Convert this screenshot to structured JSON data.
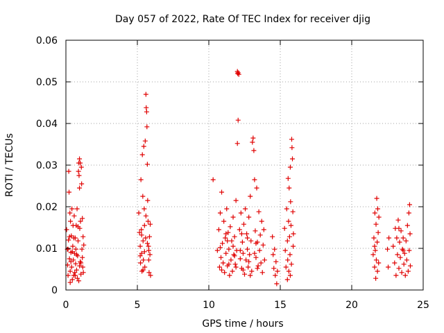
{
  "chart_data": {
    "type": "scatter",
    "title": "Day 057 of 2022, Rate Of TEC Index for receiver djig",
    "xlabel": "GPS time / hours",
    "ylabel": "ROTI / TECUs",
    "xlim": [
      0,
      25
    ],
    "ylim": [
      0,
      0.06
    ],
    "xticks": [
      0,
      5,
      10,
      15,
      20,
      25
    ],
    "xtick_labels": [
      "0",
      "5",
      "10",
      "15",
      "20",
      "25"
    ],
    "yticks": [
      0,
      0.01,
      0.02,
      0.03,
      0.04,
      0.05,
      0.06
    ],
    "ytick_labels": [
      "0",
      "0.01",
      "0.02",
      "0.03",
      "0.04",
      "0.05",
      "0.06"
    ],
    "grid": true,
    "marker": "+",
    "color": "#e00000",
    "series": [
      {
        "name": "ROTI",
        "points": [
          [
            0.05,
            0.0145
          ],
          [
            0.1,
            0.0098
          ],
          [
            0.12,
            0.006
          ],
          [
            0.15,
            0.0035
          ],
          [
            0.18,
            0.012
          ],
          [
            0.2,
            0.0285
          ],
          [
            0.22,
            0.0235
          ],
          [
            0.25,
            0.0075
          ],
          [
            0.28,
            0.0185
          ],
          [
            0.3,
            0.0045
          ],
          [
            0.32,
            0.0165
          ],
          [
            0.35,
            0.009
          ],
          [
            0.38,
            0.013
          ],
          [
            0.4,
            0.0055
          ],
          [
            0.42,
            0.0195
          ],
          [
            0.45,
            0.0025
          ],
          [
            0.48,
            0.0105
          ],
          [
            0.5,
            0.0155
          ],
          [
            0.52,
            0.0072
          ],
          [
            0.55,
            0.0035
          ],
          [
            0.58,
            0.0178
          ],
          [
            0.6,
            0.0088
          ],
          [
            0.62,
            0.0042
          ],
          [
            0.65,
            0.0125
          ],
          [
            0.68,
            0.0063
          ],
          [
            0.7,
            0.0098
          ],
          [
            0.72,
            0.0155
          ],
          [
            0.75,
            0.0048
          ],
          [
            0.78,
            0.0195
          ],
          [
            0.8,
            0.0028
          ],
          [
            0.82,
            0.0082
          ],
          [
            0.85,
            0.0118
          ],
          [
            0.88,
            0.0285
          ],
          [
            0.9,
            0.0305
          ],
          [
            0.92,
            0.0275
          ],
          [
            0.95,
            0.0245
          ],
          [
            0.97,
            0.0148
          ],
          [
            1.0,
            0.0068
          ],
          [
            1.02,
            0.0165
          ],
          [
            1.05,
            0.0038
          ],
          [
            1.08,
            0.0295
          ],
          [
            1.1,
            0.0255
          ],
          [
            1.12,
            0.0098
          ],
          [
            1.15,
            0.0172
          ],
          [
            1.18,
            0.0055
          ],
          [
            1.2,
            0.0128
          ],
          [
            1.22,
            0.0042
          ],
          [
            1.25,
            0.0108
          ],
          [
            0.15,
            0.0098
          ],
          [
            0.35,
            0.0068
          ],
          [
            0.55,
            0.0125
          ],
          [
            0.75,
            0.0085
          ],
          [
            0.95,
            0.0058
          ],
          [
            1.15,
            0.0078
          ],
          [
            0.25,
            0.0128
          ],
          [
            0.45,
            0.0092
          ],
          [
            0.65,
            0.0035
          ],
          [
            0.85,
            0.0152
          ],
          [
            1.05,
            0.0065
          ],
          [
            0.3,
            0.0018
          ],
          [
            0.9,
            0.0022
          ],
          [
            1.0,
            0.0305
          ],
          [
            0.95,
            0.0315
          ],
          [
            5.1,
            0.0185
          ],
          [
            5.15,
            0.0138
          ],
          [
            5.2,
            0.0105
          ],
          [
            5.22,
            0.0065
          ],
          [
            5.25,
            0.0265
          ],
          [
            5.28,
            0.0145
          ],
          [
            5.3,
            0.0088
          ],
          [
            5.32,
            0.0045
          ],
          [
            5.35,
            0.0325
          ],
          [
            5.38,
            0.0225
          ],
          [
            5.4,
            0.0118
          ],
          [
            5.42,
            0.0072
          ],
          [
            5.45,
            0.0345
          ],
          [
            5.48,
            0.0195
          ],
          [
            5.5,
            0.0092
          ],
          [
            5.52,
            0.0055
          ],
          [
            5.55,
            0.0358
          ],
          [
            5.58,
            0.0125
          ],
          [
            5.6,
            0.047
          ],
          [
            5.62,
            0.0438
          ],
          [
            5.65,
            0.0428
          ],
          [
            5.67,
            0.0392
          ],
          [
            5.7,
            0.0302
          ],
          [
            5.72,
            0.0215
          ],
          [
            5.75,
            0.0165
          ],
          [
            5.78,
            0.0105
          ],
          [
            5.8,
            0.0072
          ],
          [
            5.82,
            0.0042
          ],
          [
            5.85,
            0.0128
          ],
          [
            5.88,
            0.0085
          ],
          [
            5.9,
            0.0158
          ],
          [
            5.92,
            0.0035
          ],
          [
            5.3,
            0.0132
          ],
          [
            5.5,
            0.0155
          ],
          [
            5.7,
            0.0112
          ],
          [
            5.2,
            0.0082
          ],
          [
            5.4,
            0.0048
          ],
          [
            5.6,
            0.0178
          ],
          [
            5.8,
            0.0095
          ],
          [
            10.3,
            0.0265
          ],
          [
            10.6,
            0.0095
          ],
          [
            10.7,
            0.0145
          ],
          [
            10.75,
            0.0055
          ],
          [
            10.8,
            0.0185
          ],
          [
            10.85,
            0.0078
          ],
          [
            10.9,
            0.0235
          ],
          [
            10.95,
            0.0112
          ],
          [
            11.0,
            0.0065
          ],
          [
            11.05,
            0.0165
          ],
          [
            11.1,
            0.0042
          ],
          [
            11.15,
            0.0125
          ],
          [
            11.2,
            0.0088
          ],
          [
            11.25,
            0.0195
          ],
          [
            11.3,
            0.0058
          ],
          [
            11.35,
            0.0138
          ],
          [
            11.4,
            0.0098
          ],
          [
            11.45,
            0.0035
          ],
          [
            11.5,
            0.0152
          ],
          [
            11.55,
            0.0072
          ],
          [
            11.6,
            0.0118
          ],
          [
            11.65,
            0.0045
          ],
          [
            11.7,
            0.0175
          ],
          [
            11.75,
            0.0085
          ],
          [
            11.8,
            0.0128
          ],
          [
            11.85,
            0.0062
          ],
          [
            11.9,
            0.0215
          ],
          [
            11.95,
            0.0095
          ],
          [
            12.0,
            0.0525
          ],
          [
            12.02,
            0.052
          ],
          [
            12.05,
            0.0522
          ],
          [
            12.1,
            0.0518
          ],
          [
            12.05,
            0.0408
          ],
          [
            12.0,
            0.0352
          ],
          [
            12.15,
            0.0145
          ],
          [
            12.2,
            0.0075
          ],
          [
            12.25,
            0.0185
          ],
          [
            12.3,
            0.0052
          ],
          [
            12.35,
            0.0115
          ],
          [
            12.4,
            0.0088
          ],
          [
            12.45,
            0.0158
          ],
          [
            12.5,
            0.0038
          ],
          [
            12.55,
            0.0195
          ],
          [
            12.6,
            0.0072
          ],
          [
            12.65,
            0.0135
          ],
          [
            12.7,
            0.0098
          ],
          [
            12.75,
            0.0055
          ],
          [
            12.8,
            0.0175
          ],
          [
            12.85,
            0.0085
          ],
          [
            12.9,
            0.0225
          ],
          [
            12.95,
            0.0118
          ],
          [
            13.0,
            0.0045
          ],
          [
            13.05,
            0.0355
          ],
          [
            13.1,
            0.0365
          ],
          [
            13.15,
            0.0335
          ],
          [
            13.2,
            0.0265
          ],
          [
            13.25,
            0.0142
          ],
          [
            13.3,
            0.0078
          ],
          [
            13.35,
            0.0245
          ],
          [
            13.4,
            0.0115
          ],
          [
            13.45,
            0.0058
          ],
          [
            13.5,
            0.0188
          ],
          [
            13.55,
            0.0095
          ],
          [
            13.6,
            0.0132
          ],
          [
            13.65,
            0.0065
          ],
          [
            13.7,
            0.0165
          ],
          [
            13.75,
            0.0042
          ],
          [
            13.8,
            0.0108
          ],
          [
            13.85,
            0.0145
          ],
          [
            13.9,
            0.0072
          ],
          [
            11.2,
            0.0135
          ],
          [
            11.7,
            0.0105
          ],
          [
            12.2,
            0.0095
          ],
          [
            12.7,
            0.0125
          ],
          [
            13.2,
            0.0088
          ],
          [
            10.8,
            0.0102
          ],
          [
            11.3,
            0.0118
          ],
          [
            11.8,
            0.0082
          ],
          [
            12.3,
            0.0135
          ],
          [
            12.8,
            0.0068
          ],
          [
            13.3,
            0.0112
          ],
          [
            10.9,
            0.0048
          ],
          [
            11.4,
            0.0062
          ],
          [
            11.9,
            0.0055
          ],
          [
            12.4,
            0.0048
          ],
          [
            12.9,
            0.0035
          ],
          [
            13.4,
            0.0052
          ],
          [
            14.45,
            0.0128
          ],
          [
            14.5,
            0.0085
          ],
          [
            14.55,
            0.0052
          ],
          [
            14.6,
            0.0098
          ],
          [
            14.65,
            0.0035
          ],
          [
            14.7,
            0.0068
          ],
          [
            14.75,
            0.0015
          ],
          [
            14.8,
            0.0045
          ],
          [
            15.3,
            0.0148
          ],
          [
            15.35,
            0.0095
          ],
          [
            15.4,
            0.0055
          ],
          [
            15.45,
            0.0195
          ],
          [
            15.5,
            0.0118
          ],
          [
            15.52,
            0.0072
          ],
          [
            15.55,
            0.0268
          ],
          [
            15.58,
            0.0165
          ],
          [
            15.6,
            0.0045
          ],
          [
            15.62,
            0.0245
          ],
          [
            15.65,
            0.0128
          ],
          [
            15.68,
            0.0085
          ],
          [
            15.7,
            0.0295
          ],
          [
            15.72,
            0.0212
          ],
          [
            15.75,
            0.0155
          ],
          [
            15.78,
            0.0062
          ],
          [
            15.8,
            0.0362
          ],
          [
            15.82,
            0.0342
          ],
          [
            15.85,
            0.0315
          ],
          [
            15.88,
            0.0188
          ],
          [
            15.9,
            0.0105
          ],
          [
            15.92,
            0.0135
          ],
          [
            15.5,
            0.0025
          ],
          [
            15.7,
            0.0035
          ],
          [
            21.5,
            0.0085
          ],
          [
            21.55,
            0.0125
          ],
          [
            21.6,
            0.0055
          ],
          [
            21.62,
            0.0185
          ],
          [
            21.65,
            0.0095
          ],
          [
            21.68,
            0.0028
          ],
          [
            21.7,
            0.0158
          ],
          [
            21.72,
            0.0072
          ],
          [
            21.75,
            0.022
          ],
          [
            21.78,
            0.0115
          ],
          [
            21.8,
            0.0045
          ],
          [
            21.82,
            0.0195
          ],
          [
            21.85,
            0.0138
          ],
          [
            21.88,
            0.0065
          ],
          [
            21.9,
            0.0175
          ],
          [
            21.6,
            0.0105
          ],
          [
            22.5,
            0.0098
          ],
          [
            22.55,
            0.0055
          ],
          [
            22.6,
            0.0125
          ],
          [
            22.9,
            0.0105
          ],
          [
            23.0,
            0.0065
          ],
          [
            23.05,
            0.0148
          ],
          [
            23.1,
            0.0035
          ],
          [
            23.15,
            0.0125
          ],
          [
            23.2,
            0.0085
          ],
          [
            23.25,
            0.0168
          ],
          [
            23.3,
            0.0052
          ],
          [
            23.35,
            0.0115
          ],
          [
            23.4,
            0.0078
          ],
          [
            23.45,
            0.0142
          ],
          [
            23.5,
            0.0042
          ],
          [
            23.55,
            0.0098
          ],
          [
            23.6,
            0.0125
          ],
          [
            23.65,
            0.0062
          ],
          [
            23.7,
            0.0088
          ],
          [
            23.75,
            0.0035
          ],
          [
            23.8,
            0.0118
          ],
          [
            23.85,
            0.0072
          ],
          [
            23.9,
            0.0155
          ],
          [
            23.95,
            0.0045
          ],
          [
            24.0,
            0.0185
          ],
          [
            24.02,
            0.0095
          ],
          [
            24.05,
            0.0205
          ],
          [
            24.08,
            0.0135
          ],
          [
            24.1,
            0.0058
          ],
          [
            23.3,
            0.0148
          ],
          [
            23.6,
            0.0095
          ]
        ]
      }
    ]
  }
}
